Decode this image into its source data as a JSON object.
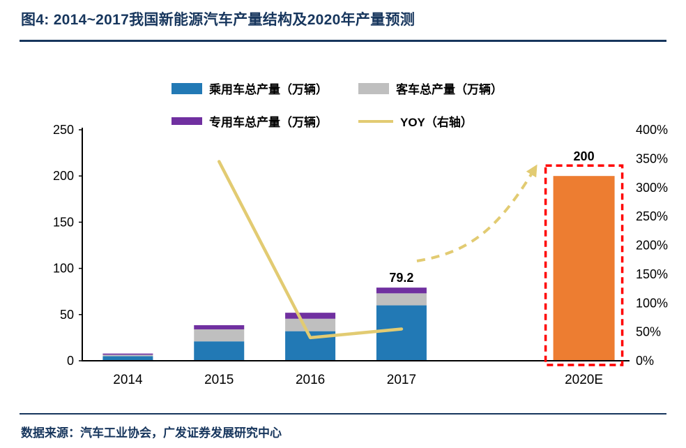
{
  "header": {
    "title": "图4:  2014~2017我国新能源汽车产量结构及2020年产量预测"
  },
  "footer": {
    "source": "数据来源：汽车工业协会，广发证券发展研究中心"
  },
  "colors": {
    "accent_navy": "#17365D",
    "passenger_blue": "#2279B5",
    "bus_gray": "#BFBFBF",
    "special_purple": "#7030A0",
    "yoy_yellow": "#E2CB72",
    "forecast_orange": "#ED7D31",
    "highlight_red": "#FF0000",
    "axis_black": "#000000"
  },
  "chart_data": {
    "type": "bar",
    "title": "2014~2017我国新能源汽车产量结构及2020年产量预测",
    "categories": [
      "2014",
      "2015",
      "2016",
      "2017",
      "2020E"
    ],
    "series": [
      {
        "name": "乘用车总产量（万辆）",
        "type": "bar-stack",
        "axis": "left",
        "color": "#2279B5",
        "values": [
          5,
          21,
          32,
          60,
          null
        ]
      },
      {
        "name": "客车总产量（万辆）",
        "type": "bar-stack",
        "axis": "left",
        "color": "#BFBFBF",
        "values": [
          1.5,
          13,
          13.5,
          13,
          null
        ]
      },
      {
        "name": "专用车总产量（万辆）",
        "type": "bar-stack",
        "axis": "left",
        "color": "#7030A0",
        "values": [
          1.3,
          4.5,
          6.5,
          6.2,
          null
        ]
      },
      {
        "name": "YOY（右轴）",
        "type": "line",
        "axis": "right",
        "color": "#E2CB72",
        "values": [
          null,
          345,
          40,
          55,
          null
        ]
      }
    ],
    "forecast": {
      "category": "2020E",
      "value": 200,
      "label": "200",
      "color": "#ED7D31",
      "highlight": "red-dashed-box"
    },
    "bar_labels": {
      "2017": "79.2"
    },
    "left_axis": {
      "min": 0,
      "max": 250,
      "step": 50,
      "ticks": [
        "0",
        "50",
        "100",
        "150",
        "200",
        "250"
      ]
    },
    "right_axis": {
      "min": 0,
      "max": 400,
      "step": 50,
      "ticks": [
        "0%",
        "50%",
        "100%",
        "150%",
        "200%",
        "250%",
        "300%",
        "350%",
        "400%"
      ]
    },
    "annotations": {
      "trend_arrow": "dashed yellow curved arrow rising toward 2020E bar"
    },
    "legend_position": "top",
    "grid": "off"
  }
}
